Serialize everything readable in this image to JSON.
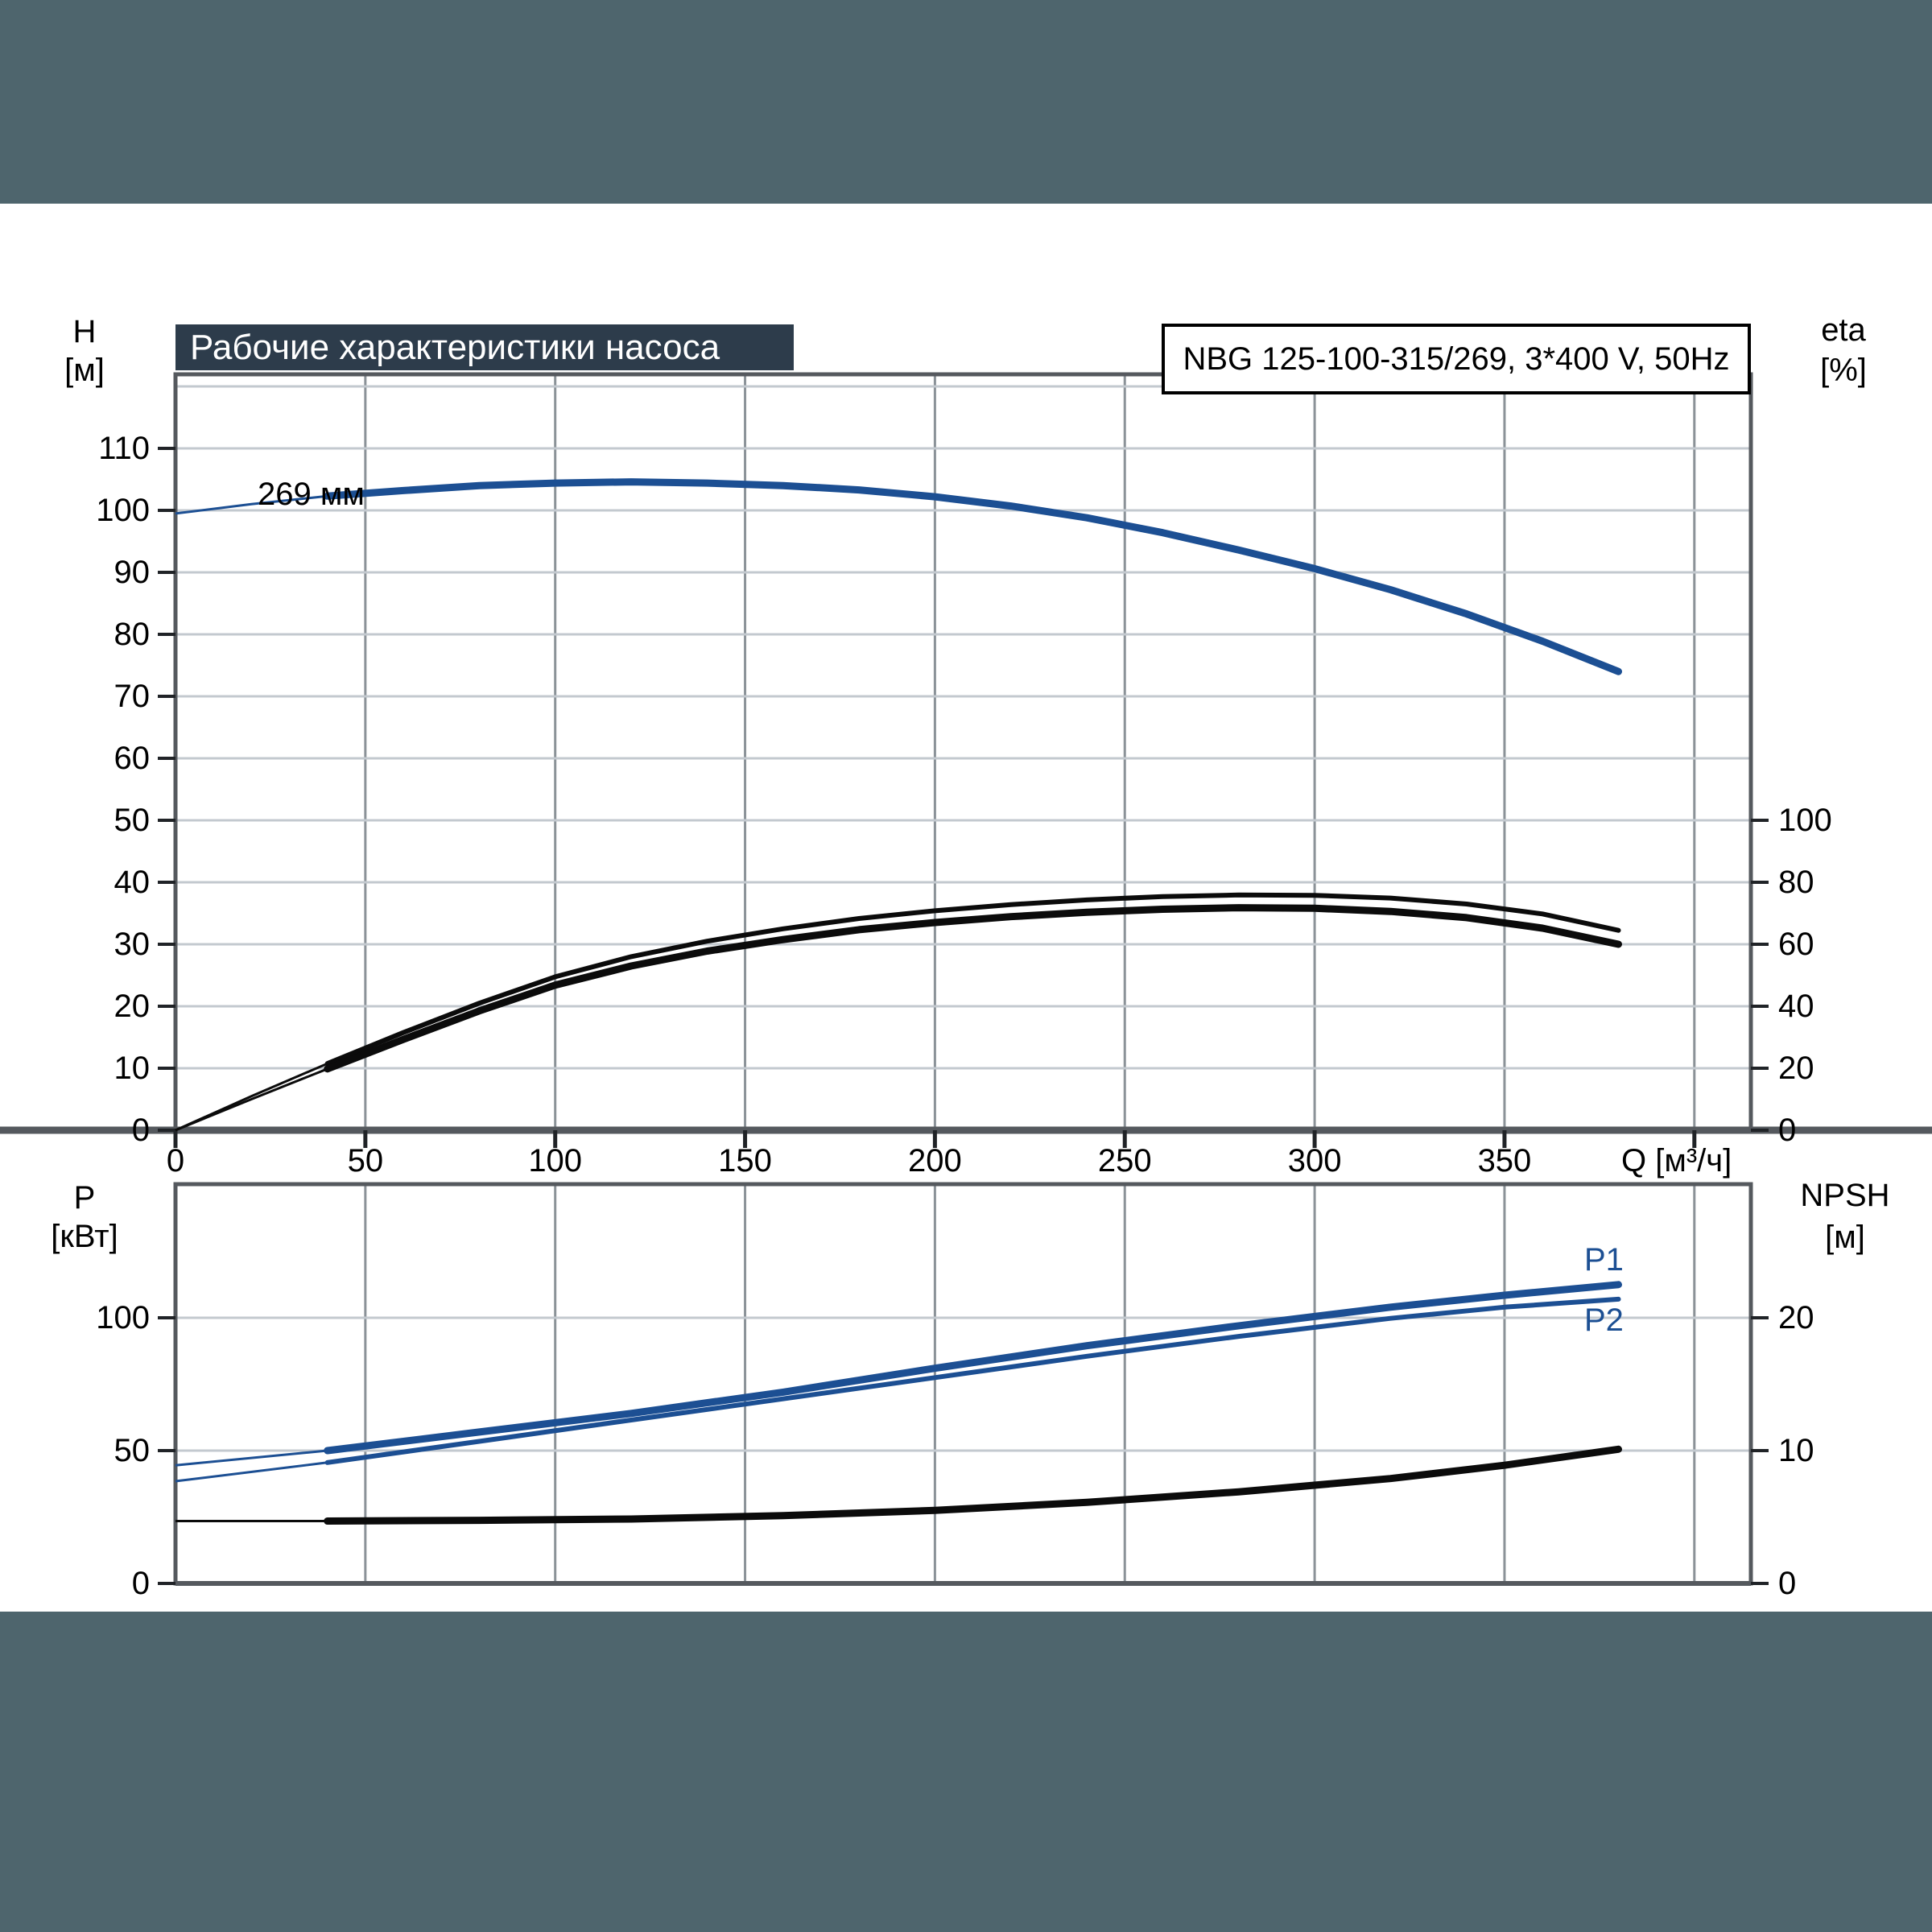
{
  "page": {
    "title": "Рабочие характеристики насоса",
    "model": "NBG 125-100-315/269, 3*400 V, 50Hz"
  },
  "colors": {
    "accent_blue": "#1c4f93",
    "curve_black": "#0b0b0b",
    "titlebar_bg": "#2d3c4b",
    "outer_bg": "#4e656d",
    "grid_vertical": "#8b9298",
    "grid_horizontal": "#c3c9cf",
    "axis_frame": "#55595e"
  },
  "chart_data": [
    {
      "id": "head-efficiency-chart",
      "type": "line",
      "x_axis": {
        "label": "Q [м³/ч]",
        "ticks": [
          0,
          50,
          100,
          150,
          200,
          250,
          300,
          350
        ],
        "unlabeled_ticks": [
          400
        ],
        "range": [
          0,
          415
        ],
        "grid": true
      },
      "y_left": {
        "label": "H",
        "unit": "[м]",
        "ticks": [
          0,
          10,
          20,
          30,
          40,
          50,
          60,
          70,
          80,
          90,
          100,
          110
        ],
        "range": [
          0,
          122
        ],
        "grid_step": 10
      },
      "y_right": {
        "label": "eta",
        "unit": "[%]",
        "ticks": [
          0,
          20,
          40,
          60,
          80,
          100
        ],
        "range": [
          0,
          244
        ]
      },
      "curve_label": "269 мм",
      "duty_min_q": 36,
      "series": [
        {
          "name": "head-269mm",
          "axis": "H",
          "color_key": "accent_blue",
          "emphasis": "thick",
          "x": [
            0,
            20,
            40,
            60,
            80,
            100,
            120,
            140,
            160,
            180,
            200,
            220,
            240,
            260,
            280,
            300,
            320,
            340,
            360,
            380
          ],
          "y": [
            99.5,
            101,
            102.3,
            103.2,
            104,
            104.4,
            104.6,
            104.4,
            104,
            103.3,
            102.2,
            100.7,
            98.8,
            96.4,
            93.6,
            90.6,
            87.2,
            83.3,
            78.9,
            74
          ]
        },
        {
          "name": "eta-pump",
          "axis": "eta",
          "color_key": "curve_black",
          "emphasis": "medium",
          "x": [
            0,
            20,
            40,
            60,
            80,
            100,
            120,
            140,
            160,
            180,
            200,
            220,
            240,
            260,
            280,
            300,
            320,
            340,
            360,
            380
          ],
          "y": [
            0,
            11,
            21.5,
            31.5,
            41,
            49.5,
            56,
            61,
            65,
            68.3,
            70.8,
            72.8,
            74.3,
            75.4,
            75.9,
            75.8,
            74.9,
            73,
            69.8,
            64.5
          ]
        },
        {
          "name": "eta-pump-motor",
          "axis": "eta",
          "color_key": "curve_black",
          "emphasis": "thick",
          "x": [
            0,
            20,
            40,
            60,
            80,
            100,
            120,
            140,
            160,
            180,
            200,
            220,
            240,
            260,
            280,
            300,
            320,
            340,
            360,
            380
          ],
          "y": [
            0,
            10,
            19.8,
            29.3,
            38.5,
            46.8,
            53,
            57.8,
            61.5,
            64.7,
            67,
            68.9,
            70.3,
            71.3,
            71.8,
            71.6,
            70.6,
            68.6,
            65.2,
            60
          ]
        }
      ]
    },
    {
      "id": "power-npsh-chart",
      "type": "line",
      "x_axis": {
        "label": "",
        "ticks": [],
        "unlabeled_ticks": [],
        "range": [
          0,
          415
        ],
        "grid": true
      },
      "y_left": {
        "label": "P",
        "unit": "[кВт]",
        "ticks": [
          0,
          50,
          100
        ],
        "range": [
          0,
          150
        ],
        "grid_step": 50
      },
      "y_right": {
        "label": "NPSH",
        "unit": "[м]",
        "ticks": [
          0,
          10,
          20
        ],
        "range": [
          0,
          30
        ]
      },
      "curve_labels": {
        "p1": "P1",
        "p2": "P2"
      },
      "duty_min_q": 36,
      "series": [
        {
          "name": "P1",
          "axis": "P",
          "color_key": "accent_blue",
          "emphasis": "thick",
          "x": [
            0,
            40,
            80,
            120,
            160,
            200,
            240,
            280,
            320,
            350,
            380
          ],
          "y": [
            44.5,
            50,
            57,
            64,
            72,
            81,
            89.5,
            97,
            104,
            108.5,
            112.5
          ]
        },
        {
          "name": "P2",
          "axis": "P",
          "color_key": "accent_blue",
          "emphasis": "medium",
          "x": [
            0,
            40,
            80,
            120,
            160,
            200,
            240,
            280,
            320,
            350,
            380
          ],
          "y": [
            38.5,
            45.5,
            53.5,
            61.5,
            69.5,
            77.5,
            85.5,
            93,
            99.8,
            104,
            107
          ]
        },
        {
          "name": "NPSH",
          "axis": "NPSH",
          "color_key": "curve_black",
          "emphasis": "thick",
          "x": [
            0,
            40,
            80,
            120,
            160,
            200,
            240,
            280,
            320,
            350,
            380
          ],
          "y": [
            4.7,
            4.7,
            4.75,
            4.85,
            5.1,
            5.5,
            6.1,
            6.9,
            7.9,
            8.9,
            10.1
          ]
        }
      ]
    }
  ]
}
